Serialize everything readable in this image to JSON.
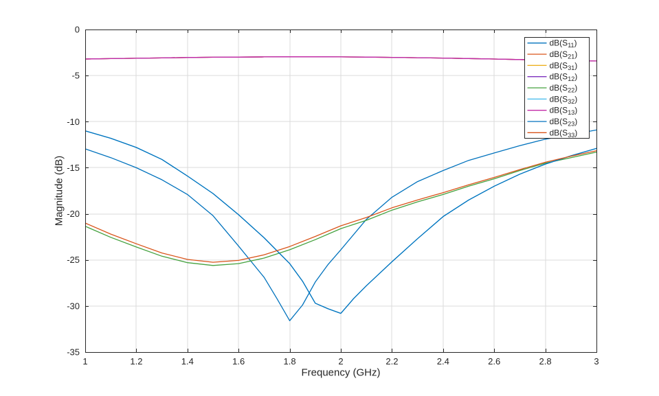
{
  "figure": {
    "background": "#FFFFFF",
    "axis_color": "#262626",
    "grid_color": "#DBDBDB",
    "tick_label_color": "#262626",
    "legend_border_color": "#262626",
    "legend_background": "#FFFFFF"
  },
  "chart_data": {
    "type": "line",
    "title": "",
    "xlabel": "Frequency (GHz)",
    "ylabel": "Magnitude (dB)",
    "xlim": [
      1,
      3
    ],
    "ylim": [
      -35,
      0
    ],
    "grid": true,
    "legend_position": "northeast",
    "xtick_values": [
      1,
      1.2,
      1.4,
      1.6,
      1.8,
      2,
      2.2,
      2.4,
      2.6,
      2.8,
      3
    ],
    "xtick_labels": [
      "1",
      "1.2",
      "1.4",
      "1.6",
      "1.8",
      "2",
      "2.2",
      "2.4",
      "2.6",
      "2.8",
      "3"
    ],
    "ytick_values": [
      0,
      -5,
      -10,
      -15,
      -20,
      -25,
      -30,
      -35
    ],
    "ytick_labels": [
      "0",
      "-5",
      "-10",
      "-15",
      "-20",
      "-25",
      "-30",
      "-35"
    ],
    "shared_points": {
      "transmission": [
        [
          1,
          -3.2
        ],
        [
          1.1,
          -3.16
        ],
        [
          1.2,
          -3.12
        ],
        [
          1.3,
          -3.08
        ],
        [
          1.4,
          -3.04
        ],
        [
          1.5,
          -3.01
        ],
        [
          1.6,
          -2.99
        ],
        [
          1.7,
          -2.97
        ],
        [
          1.8,
          -2.96
        ],
        [
          1.9,
          -2.96
        ],
        [
          2,
          -2.97
        ],
        [
          2.1,
          -2.99
        ],
        [
          2.2,
          -3.02
        ],
        [
          2.3,
          -3.06
        ],
        [
          2.4,
          -3.1
        ],
        [
          2.5,
          -3.15
        ],
        [
          2.6,
          -3.2
        ],
        [
          2.7,
          -3.26
        ],
        [
          2.8,
          -3.32
        ],
        [
          2.9,
          -3.38
        ],
        [
          3,
          -3.42
        ]
      ],
      "isolation": [
        [
          1,
          -11.0
        ],
        [
          1.1,
          -11.8
        ],
        [
          1.2,
          -12.8
        ],
        [
          1.3,
          -14.1
        ],
        [
          1.4,
          -15.9
        ],
        [
          1.5,
          -17.8
        ],
        [
          1.6,
          -20.1
        ],
        [
          1.7,
          -22.6
        ],
        [
          1.8,
          -25.4
        ],
        [
          1.85,
          -27.3
        ],
        [
          1.9,
          -29.7
        ],
        [
          1.95,
          -30.3
        ],
        [
          2,
          -30.8
        ],
        [
          2.05,
          -29.2
        ],
        [
          2.1,
          -27.8
        ],
        [
          2.2,
          -25.2
        ],
        [
          2.3,
          -22.7
        ],
        [
          2.4,
          -20.3
        ],
        [
          2.5,
          -18.5
        ],
        [
          2.6,
          -17.0
        ],
        [
          2.7,
          -15.7
        ],
        [
          2.8,
          -14.6
        ],
        [
          2.9,
          -13.7
        ],
        [
          3,
          -12.9
        ]
      ]
    },
    "series": [
      {
        "id": "s11",
        "label": "dB(S11)",
        "label_pre": "dB(S",
        "label_sub": "11",
        "label_post": ")",
        "color": "#0072BD",
        "points": [
          [
            1,
            -12.95
          ],
          [
            1.1,
            -13.9
          ],
          [
            1.2,
            -15.0
          ],
          [
            1.3,
            -16.3
          ],
          [
            1.4,
            -17.9
          ],
          [
            1.5,
            -20.2
          ],
          [
            1.6,
            -23.5
          ],
          [
            1.7,
            -26.9
          ],
          [
            1.75,
            -29.2
          ],
          [
            1.8,
            -31.6
          ],
          [
            1.85,
            -29.9
          ],
          [
            1.9,
            -27.4
          ],
          [
            1.95,
            -25.5
          ],
          [
            2,
            -23.9
          ],
          [
            2.1,
            -20.6
          ],
          [
            2.2,
            -18.2
          ],
          [
            2.3,
            -16.5
          ],
          [
            2.4,
            -15.3
          ],
          [
            2.5,
            -14.2
          ],
          [
            2.6,
            -13.4
          ],
          [
            2.7,
            -12.6
          ],
          [
            2.8,
            -11.9
          ],
          [
            2.9,
            -11.4
          ],
          [
            3,
            -10.9
          ]
        ]
      },
      {
        "id": "s21",
        "label": "dB(S21)",
        "label_pre": "dB(S",
        "label_sub": "21",
        "label_post": ")",
        "color": "#D95319",
        "points_ref": "transmission"
      },
      {
        "id": "s31",
        "label": "dB(S31)",
        "label_pre": "dB(S",
        "label_sub": "31",
        "label_post": ")",
        "color": "#EDB120",
        "points_ref": "transmission"
      },
      {
        "id": "s12",
        "label": "dB(S12)",
        "label_pre": "dB(S",
        "label_sub": "12",
        "label_post": ")",
        "color": "#7D2FBE",
        "points_ref": "transmission"
      },
      {
        "id": "s22",
        "label": "dB(S22)",
        "label_pre": "dB(S",
        "label_sub": "22",
        "label_post": ")",
        "color": "#44A13E",
        "points": [
          [
            1,
            -21.35
          ],
          [
            1.1,
            -22.55
          ],
          [
            1.2,
            -23.6
          ],
          [
            1.3,
            -24.6
          ],
          [
            1.4,
            -25.3
          ],
          [
            1.5,
            -25.6
          ],
          [
            1.6,
            -25.4
          ],
          [
            1.7,
            -24.8
          ],
          [
            1.8,
            -23.9
          ],
          [
            1.9,
            -22.8
          ],
          [
            2,
            -21.6
          ],
          [
            2.1,
            -20.7
          ],
          [
            2.2,
            -19.6
          ],
          [
            2.3,
            -18.7
          ],
          [
            2.4,
            -17.9
          ],
          [
            2.5,
            -17.0
          ],
          [
            2.6,
            -16.2
          ],
          [
            2.7,
            -15.3
          ],
          [
            2.8,
            -14.5
          ],
          [
            2.9,
            -13.9
          ],
          [
            3,
            -13.3
          ]
        ]
      },
      {
        "id": "s32",
        "label": "dB(S32)",
        "label_pre": "dB(S",
        "label_sub": "32",
        "label_post": ")",
        "color": "#4DBEEE",
        "points_ref": "isolation"
      },
      {
        "id": "s13",
        "label": "dB(S13)",
        "label_pre": "dB(S",
        "label_sub": "13",
        "label_post": ")",
        "color": "#C32AA6",
        "points_ref": "transmission"
      },
      {
        "id": "s23",
        "label": "dB(S23)",
        "label_pre": "dB(S",
        "label_sub": "23",
        "label_post": ")",
        "color": "#0072BD",
        "points_ref": "isolation"
      },
      {
        "id": "s33",
        "label": "dB(S33)",
        "label_pre": "dB(S",
        "label_sub": "33",
        "label_post": ")",
        "color": "#D95319",
        "points": [
          [
            1,
            -21.0
          ],
          [
            1.1,
            -22.2
          ],
          [
            1.2,
            -23.25
          ],
          [
            1.3,
            -24.25
          ],
          [
            1.4,
            -24.95
          ],
          [
            1.5,
            -25.25
          ],
          [
            1.6,
            -25.05
          ],
          [
            1.7,
            -24.45
          ],
          [
            1.8,
            -23.55
          ],
          [
            1.9,
            -22.45
          ],
          [
            2,
            -21.3
          ],
          [
            2.1,
            -20.4
          ],
          [
            2.2,
            -19.35
          ],
          [
            2.3,
            -18.5
          ],
          [
            2.4,
            -17.7
          ],
          [
            2.5,
            -16.85
          ],
          [
            2.6,
            -16.05
          ],
          [
            2.7,
            -15.2
          ],
          [
            2.8,
            -14.4
          ],
          [
            2.9,
            -13.75
          ],
          [
            3,
            -13.15
          ]
        ]
      }
    ]
  }
}
